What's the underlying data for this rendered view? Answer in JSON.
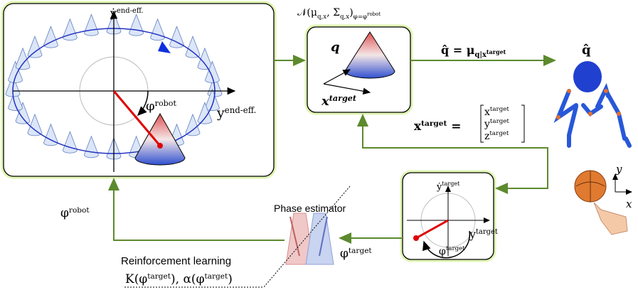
{
  "left_panel": {
    "y_axis_label": [
      {
        "t": "ẏ"
      },
      {
        "t": "end-eff.",
        "s": "sup"
      }
    ],
    "x_axis_label": [
      {
        "t": "y"
      },
      {
        "t": "end-eff.",
        "s": "sup"
      }
    ],
    "phase_label": [
      {
        "t": "φ"
      },
      {
        "t": "robot",
        "s": "sup"
      }
    ]
  },
  "model_panel": {
    "title": [
      {
        "t": "𝒩(μ"
      },
      {
        "t": "q,x",
        "s": "sub"
      },
      {
        "t": ", Σ"
      },
      {
        "t": "q,x",
        "s": "sub"
      },
      {
        "t": ")"
      },
      {
        "t": "φ=φ",
        "s": "sub"
      },
      {
        "t": "robot",
        "s": "subsup"
      }
    ],
    "q_label": [
      {
        "t": "q"
      }
    ],
    "x_label": [
      {
        "t": "x"
      },
      {
        "t": "target",
        "s": "sup"
      }
    ]
  },
  "output": {
    "equation": [
      {
        "t": "q̂ = μ"
      },
      {
        "t": "q|x",
        "s": "sub"
      },
      {
        "t": "target",
        "s": "subsup"
      }
    ],
    "robot_label": [
      {
        "t": "q̂"
      }
    ]
  },
  "target_vector": {
    "lhs": [
      {
        "t": "x"
      },
      {
        "t": "target",
        "s": "sup"
      },
      {
        "t": " ="
      }
    ],
    "entries": [
      [
        {
          "t": "x"
        },
        {
          "t": "target",
          "s": "sup"
        }
      ],
      [
        {
          "t": "y"
        },
        {
          "t": "target",
          "s": "sup"
        }
      ],
      [
        {
          "t": "z"
        },
        {
          "t": "target",
          "s": "sup"
        }
      ]
    ]
  },
  "target_panel": {
    "y_axis_label": [
      {
        "t": "ẏ"
      },
      {
        "t": "target",
        "s": "sup"
      }
    ],
    "x_axis_label": [
      {
        "t": "y"
      },
      {
        "t": "target",
        "s": "sup"
      }
    ],
    "phase_label": [
      {
        "t": "φ"
      },
      {
        "t": "target",
        "s": "sup"
      }
    ]
  },
  "phase_estimator": "Phase estimator",
  "reinforcement_learning": "Reinforcement learning",
  "rl_params": [
    {
      "t": "K(φ"
    },
    {
      "t": "target",
      "s": "sup"
    },
    {
      "t": "), α(φ"
    },
    {
      "t": "target",
      "s": "sup"
    },
    {
      "t": ")"
    }
  ],
  "phi_robot_feedback": [
    {
      "t": "φ"
    },
    {
      "t": "robot",
      "s": "sup"
    }
  ],
  "phi_target_feedback": [
    {
      "t": "φ"
    },
    {
      "t": "target",
      "s": "sup"
    }
  ],
  "frame": {
    "y": "y",
    "x": "x"
  }
}
